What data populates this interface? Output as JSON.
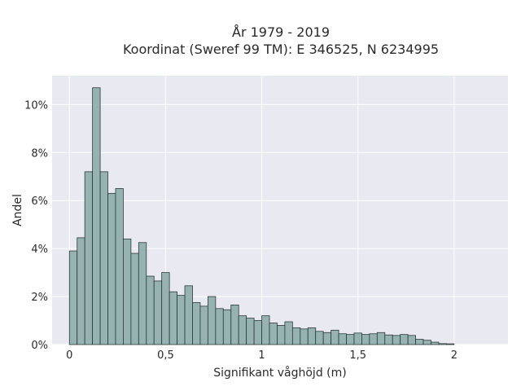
{
  "chart_data": {
    "type": "bar",
    "title_line1": "År 1979 - 2019",
    "title_line2": "Koordinat (Sweref 99 TM): E 346525, N 6234995",
    "xlabel": "Signifikant våghöjd (m)",
    "ylabel": "Andel",
    "xlim": [
      -0.09,
      2.28
    ],
    "ylim": [
      0,
      11.2
    ],
    "x_ticks": [
      {
        "value": 0,
        "label": "0"
      },
      {
        "value": 0.5,
        "label": "0,5"
      },
      {
        "value": 1,
        "label": "1"
      },
      {
        "value": 1.5,
        "label": "1,5"
      },
      {
        "value": 2,
        "label": "2"
      }
    ],
    "y_ticks": [
      {
        "value": 0,
        "label": "0%"
      },
      {
        "value": 2,
        "label": "2%"
      },
      {
        "value": 4,
        "label": "4%"
      },
      {
        "value": 6,
        "label": "6%"
      },
      {
        "value": 8,
        "label": "8%"
      },
      {
        "value": 10,
        "label": "10%"
      }
    ],
    "grid": true,
    "bin_width": 0.04,
    "bin_start": 0.0,
    "values": [
      3.9,
      4.45,
      7.2,
      10.7,
      7.2,
      6.3,
      6.5,
      4.4,
      3.8,
      4.25,
      2.85,
      2.65,
      3.0,
      2.2,
      2.05,
      2.45,
      1.75,
      1.6,
      2.0,
      1.5,
      1.45,
      1.65,
      1.2,
      1.1,
      1.0,
      1.2,
      0.9,
      0.8,
      0.95,
      0.7,
      0.65,
      0.7,
      0.55,
      0.5,
      0.6,
      0.45,
      0.42,
      0.48,
      0.42,
      0.45,
      0.5,
      0.4,
      0.38,
      0.42,
      0.38,
      0.22,
      0.18,
      0.1,
      0.04,
      0.03
    ],
    "colors": {
      "bar_fill": "#97b3b1",
      "bar_stroke": "#2b3a39",
      "plot_bg": "#e9e9f1",
      "grid": "#ffffff"
    }
  }
}
